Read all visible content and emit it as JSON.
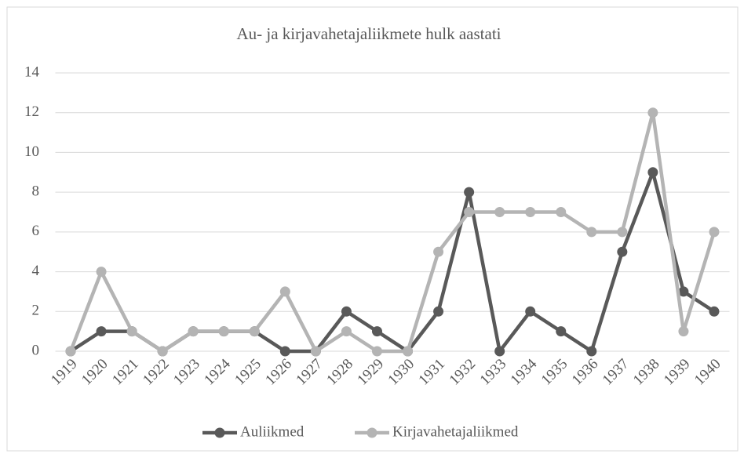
{
  "chart_data": {
    "type": "line",
    "title": "Au- ja kirjavahetajaliikmete hulk aastati",
    "categories": [
      "1919",
      "1920",
      "1921",
      "1922",
      "1923",
      "1924",
      "1925",
      "1926",
      "1927",
      "1928",
      "1929",
      "1930",
      "1931",
      "1932",
      "1933",
      "1934",
      "1935",
      "1936",
      "1937",
      "1938",
      "1939",
      "1940"
    ],
    "series": [
      {
        "name": "Auliikmed",
        "color": "#595959",
        "values": [
          0,
          1,
          1,
          0,
          1,
          1,
          1,
          0,
          0,
          2,
          1,
          0,
          2,
          8,
          0,
          2,
          1,
          0,
          5,
          9,
          3,
          2
        ]
      },
      {
        "name": "Kirjavahetajaliikmed",
        "color": "#b4b4b4",
        "values": [
          0,
          4,
          1,
          0,
          1,
          1,
          1,
          3,
          0,
          1,
          0,
          0,
          5,
          7,
          7,
          7,
          7,
          6,
          6,
          12,
          1,
          6
        ]
      }
    ],
    "ylim": [
      0,
      14
    ],
    "yticks": [
      0,
      2,
      4,
      6,
      8,
      10,
      12,
      14
    ],
    "grid": true,
    "legend": "bottom"
  }
}
